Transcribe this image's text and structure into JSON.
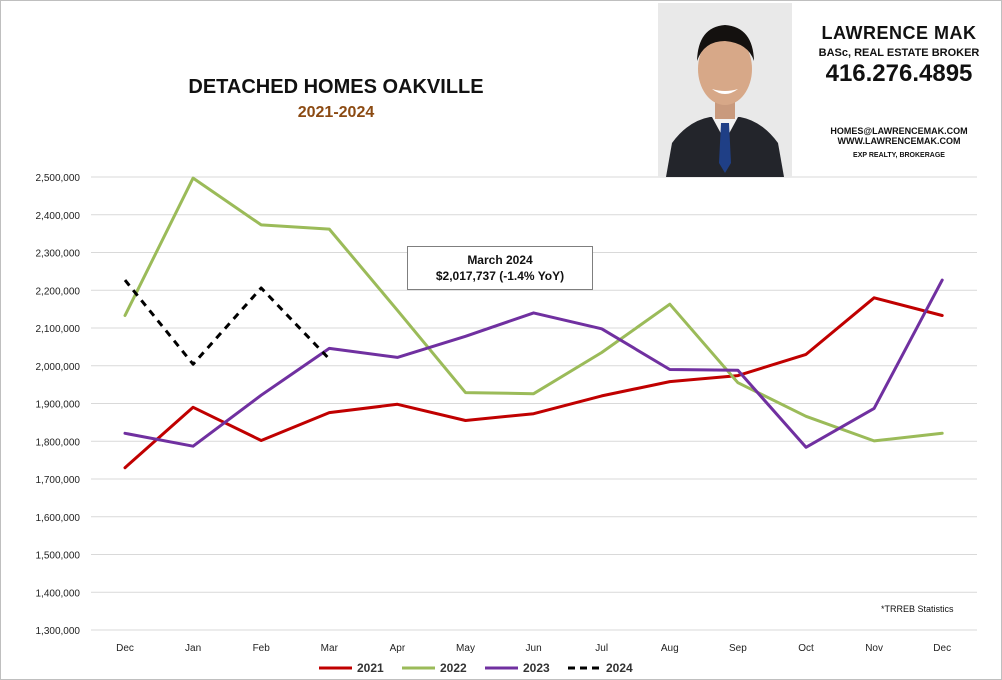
{
  "chart_data": {
    "type": "line",
    "title": "DETACHED HOMES OAKVILLE",
    "subtitle": "2021-2024",
    "categories": [
      "Dec",
      "Jan",
      "Feb",
      "Mar",
      "Apr",
      "May",
      "Jun",
      "Jul",
      "Aug",
      "Sep",
      "Oct",
      "Nov",
      "Dec"
    ],
    "ylim": [
      1300000,
      2500000
    ],
    "yticks": [
      1300000,
      1400000,
      1500000,
      1600000,
      1700000,
      1800000,
      1900000,
      2000000,
      2100000,
      2200000,
      2300000,
      2400000,
      2500000
    ],
    "grid": "horizontal",
    "legend_position": "bottom",
    "series": [
      {
        "name": "2021",
        "color": "#c00000",
        "dash": "solid",
        "values": [
          1730000,
          1890000,
          1802000,
          1876000,
          1898000,
          1855000,
          1873000,
          1920000,
          1958000,
          1974000,
          2030000,
          2180000,
          2133000
        ]
      },
      {
        "name": "2022",
        "color": "#9bbb59",
        "dash": "solid",
        "values": [
          2133000,
          2497000,
          2373000,
          2362000,
          2147000,
          1929000,
          1926000,
          2035000,
          2163000,
          1955000,
          1866000,
          1801000,
          1821000
        ]
      },
      {
        "name": "2023",
        "color": "#7030a0",
        "dash": "solid",
        "values": [
          1821000,
          1787000,
          1922000,
          2046000,
          2022000,
          2078000,
          2140000,
          2098000,
          1990000,
          1988000,
          1784000,
          1887000,
          2227000
        ]
      },
      {
        "name": "2024",
        "color": "#000000",
        "dash": "dashed",
        "values": [
          2227000,
          2004000,
          2206000,
          2018000,
          null,
          null,
          null,
          null,
          null,
          null,
          null,
          null,
          null
        ]
      }
    ],
    "annotation": {
      "line1": "March 2024",
      "line2": "$2,017,737  (-1.4%  YoY)"
    },
    "source_note": "*TRREB Statistics"
  },
  "broker": {
    "name": "LAWRENCE MAK",
    "credentials": "BASc, REAL ESTATE BROKER",
    "phone": "416.276.4895",
    "email": "HOMES@LAWRENCEMAK.COM",
    "website": "WWW.LAWRENCEMAK.COM",
    "brokerage": "EXP REALTY, BROKERAGE"
  }
}
